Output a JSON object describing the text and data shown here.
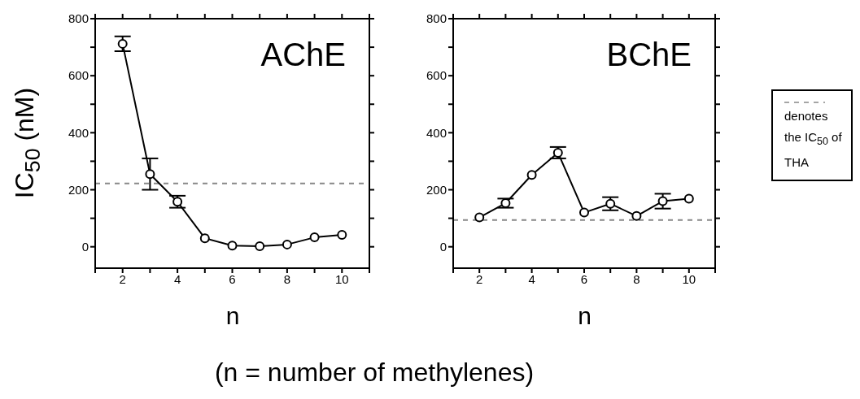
{
  "chart_data": [
    {
      "type": "line",
      "title": "AChE",
      "xlabel": "n",
      "ylabel": "IC$_{50}$ (nM)",
      "x": [
        2,
        3,
        4,
        5,
        6,
        7,
        8,
        9,
        10
      ],
      "series": [
        {
          "color": "#000000",
          "values": [
            712,
            255,
            158,
            30,
            4,
            2,
            8,
            33,
            42
          ],
          "errors": [
            26,
            55,
            21,
            null,
            null,
            null,
            null,
            null,
            null
          ]
        }
      ],
      "xlim": [
        1,
        11
      ],
      "xticks": [
        {
          "value": 1,
          "label": null
        },
        2,
        {
          "value": 3,
          "label": null
        },
        4,
        {
          "value": 5,
          "label": null
        },
        6,
        {
          "value": 7,
          "label": null
        },
        8,
        {
          "value": 9,
          "label": null
        },
        10,
        {
          "value": 11,
          "label": null
        }
      ],
      "ylim": [
        -75,
        800
      ],
      "yticks": [
        0,
        {
          "value": 100,
          "label": null
        },
        200,
        {
          "value": 300,
          "label": null
        },
        400,
        {
          "value": 500,
          "label": null
        },
        600,
        {
          "value": 700,
          "label": null
        },
        800
      ],
      "ref_lines": [
        {
          "axis": "y",
          "value": 222,
          "color": "#888888",
          "line_style": "dashed"
        }
      ],
      "marker": "circle",
      "line_style": "solid",
      "grid": false,
      "annotations": [
        "(n = number of methylenes)"
      ]
    },
    {
      "type": "line",
      "title": "BChE",
      "xlabel": "n",
      "x": [
        2,
        3,
        4,
        5,
        6,
        7,
        8,
        9,
        10
      ],
      "series": [
        {
          "color": "#000000",
          "values": [
            103,
            153,
            252,
            330,
            120,
            151,
            108,
            160,
            169
          ],
          "errors": [
            null,
            16,
            null,
            20,
            null,
            23,
            null,
            26,
            null
          ]
        }
      ],
      "xlim": [
        1,
        11
      ],
      "xticks": [
        {
          "value": 1,
          "label": null
        },
        2,
        {
          "value": 3,
          "label": null
        },
        4,
        {
          "value": 5,
          "label": null
        },
        6,
        {
          "value": 7,
          "label": null
        },
        8,
        {
          "value": 9,
          "label": null
        },
        10,
        {
          "value": 11,
          "label": null
        }
      ],
      "ylim": [
        -75,
        800
      ],
      "yticks": [
        0,
        {
          "value": 100,
          "label": null
        },
        200,
        {
          "value": 300,
          "label": null
        },
        400,
        {
          "value": 500,
          "label": null
        },
        600,
        {
          "value": 700,
          "label": null
        },
        800
      ],
      "ref_lines": [
        {
          "axis": "y",
          "value": 94,
          "color": "#888888",
          "line_style": "dashed",
          "label": "denotes the IC$_{50}$ of THA"
        }
      ],
      "marker": "circle",
      "line_style": "solid",
      "grid": false
    }
  ]
}
